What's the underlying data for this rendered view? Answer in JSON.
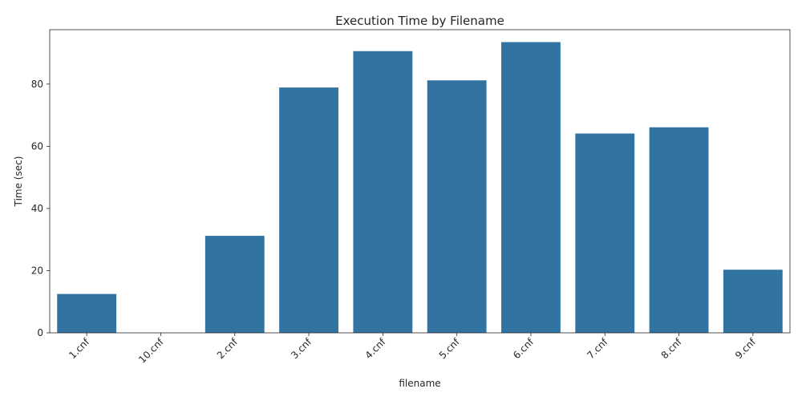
{
  "chart_data": {
    "type": "bar",
    "title": "Execution Time by Filename",
    "xlabel": "filename",
    "ylabel": "Time (sec)",
    "categories": [
      "1.cnf",
      "10.cnf",
      "2.cnf",
      "3.cnf",
      "4.cnf",
      "5.cnf",
      "6.cnf",
      "7.cnf",
      "8.cnf",
      "9.cnf"
    ],
    "values": [
      12.5,
      0,
      31.2,
      78.9,
      90.6,
      81.2,
      93.5,
      64.1,
      66.1,
      20.3
    ],
    "ylim": [
      0,
      97.5
    ],
    "yticks": [
      0,
      20,
      40,
      60,
      80
    ],
    "bar_color": "#3274a1",
    "grid": false,
    "legend": false
  }
}
